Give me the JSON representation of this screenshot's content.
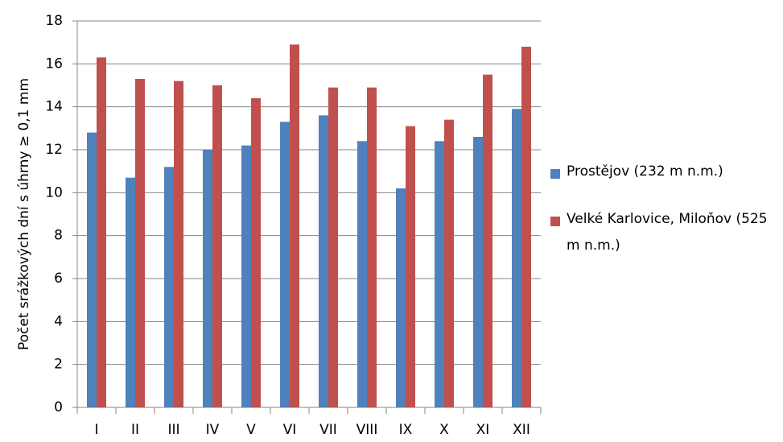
{
  "chart_data": {
    "type": "bar",
    "y_label": "Počet srážkových dní s úhrny ≥ 0,1 mm",
    "categories": [
      "I",
      "II",
      "III",
      "IV",
      "V",
      "VI",
      "VII",
      "VIII",
      "IX",
      "X",
      "XI",
      "XII"
    ],
    "series": [
      {
        "name": "Prostějov (232 m n.m.)",
        "color": "#4f81bd",
        "values": [
          12.8,
          10.7,
          11.2,
          12.0,
          12.2,
          13.3,
          13.6,
          12.4,
          10.2,
          12.4,
          12.6,
          13.9
        ]
      },
      {
        "name": "Velké Karlovice, Miloňov (525 m n.m.)",
        "color": "#c0504d",
        "values": [
          16.3,
          15.3,
          15.2,
          15.0,
          14.4,
          16.9,
          14.9,
          14.9,
          13.1,
          13.4,
          15.5,
          16.8
        ]
      }
    ],
    "ylim": [
      0,
      18
    ],
    "yticks": [
      0,
      2,
      4,
      6,
      8,
      10,
      12,
      14,
      16,
      18
    ],
    "grid": true,
    "legend": "right"
  }
}
